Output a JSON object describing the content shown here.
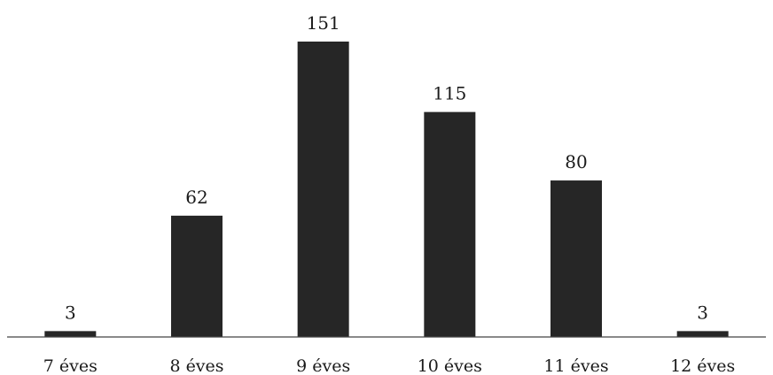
{
  "chart_data": {
    "type": "bar",
    "categories": [
      "7 éves",
      "8 éves",
      "9 éves",
      "10 éves",
      "11 éves",
      "12 éves"
    ],
    "values": [
      3,
      62,
      151,
      115,
      80,
      3
    ],
    "data_labels": [
      "3",
      "62",
      "151",
      "115",
      "80",
      "3"
    ],
    "title": "",
    "xlabel": "",
    "ylabel": "",
    "ylim": [
      0,
      151
    ],
    "grid": false,
    "legend": "none",
    "bar_color": "#262626"
  }
}
